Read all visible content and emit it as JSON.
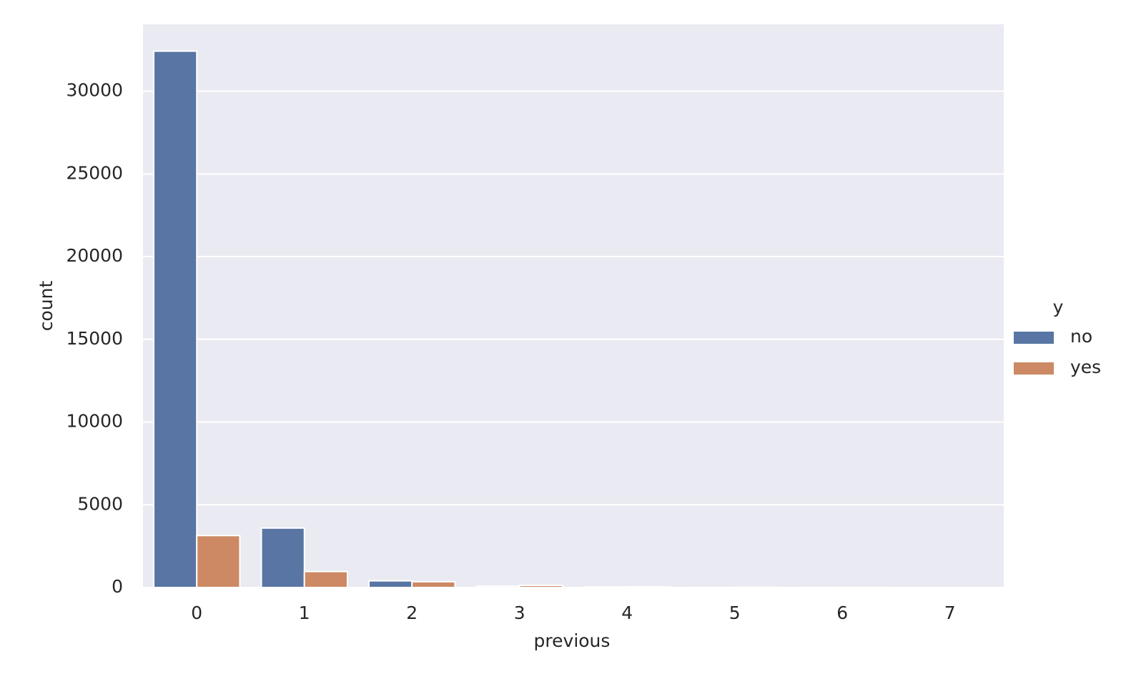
{
  "chart_data": {
    "type": "bar",
    "x_label": "previous",
    "y_label": "count",
    "categories": [
      "0",
      "1",
      "2",
      "3",
      "4",
      "5",
      "6",
      "7"
    ],
    "legend_title": "y",
    "series": [
      {
        "name": "no",
        "color": "#5875a4",
        "values": [
          32422,
          3594,
          404,
          88,
          32,
          5,
          2,
          1
        ]
      },
      {
        "name": "yes",
        "color": "#cc8963",
        "values": [
          3141,
          967,
          350,
          128,
          38,
          13,
          3,
          0
        ]
      }
    ],
    "ylim": [
      0,
      34043
    ],
    "yticks": [
      0,
      5000,
      10000,
      15000,
      20000,
      25000,
      30000
    ],
    "grid": true,
    "legend": "right"
  }
}
